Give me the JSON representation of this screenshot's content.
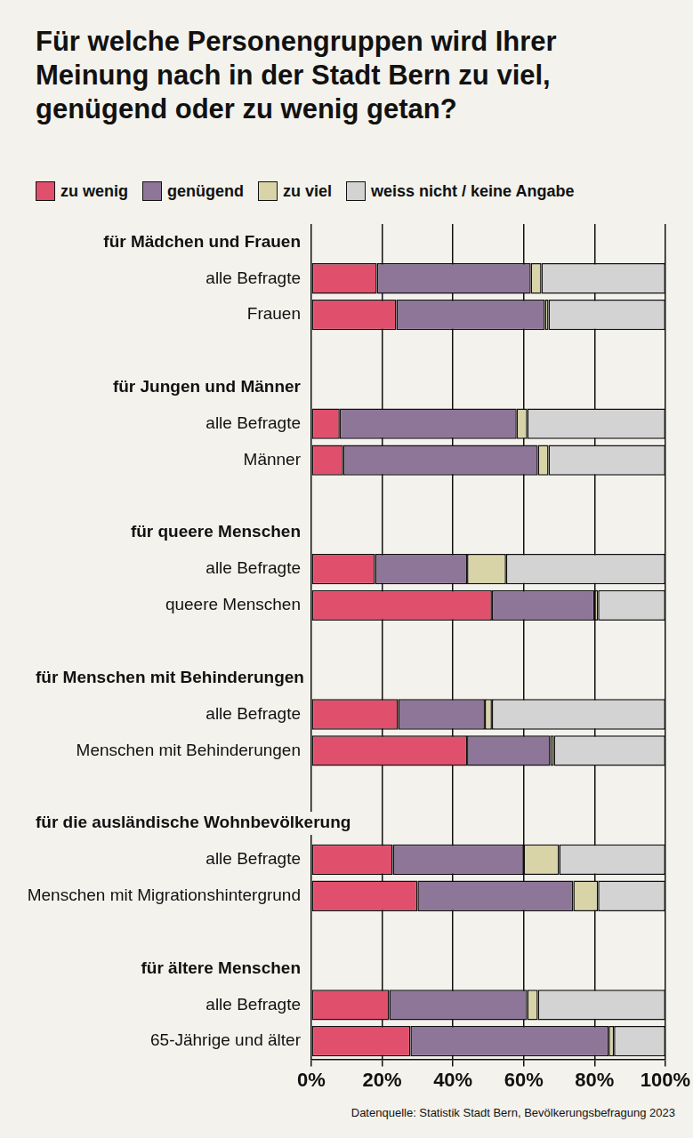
{
  "chart_data": {
    "type": "bar",
    "title": "Für welche Personengruppen wird Ihrer Meinung nach in der Stadt Bern zu viel, genügend oder zu wenig getan?",
    "source": "Datenquelle: Statistik Stadt Bern, Bevölkerungsbefragung 2023",
    "orientation": "horizontal",
    "stacked": true,
    "grid": true,
    "legend": "top-left",
    "categories": [
      "für Mädchen und Frauen",
      "alle Befragte",
      "Frauen",
      null,
      "für Jungen und Männer",
      "alle Befragte",
      "Männer",
      null,
      "für queere Menschen",
      "alle Befragte",
      "queere Menschen",
      null,
      "für Menschen mit Behinderungen",
      "alle Befragte",
      "Menschen mit Behinderungen",
      null,
      "für die ausländische Wohnbevölkerung",
      "alle Befragte",
      "Menschen mit Migrationshintergrund",
      null,
      "für ältere Menschen",
      "alle Befragte",
      "65-Jährige und älter"
    ],
    "series": [
      {
        "name": "zu wenig",
        "color": "#e0506c",
        "values": [
          null,
          18.5,
          24,
          null,
          null,
          8,
          9,
          null,
          null,
          18,
          51,
          null,
          null,
          24.5,
          44,
          null,
          null,
          23,
          30,
          null,
          null,
          22,
          28
        ]
      },
      {
        "name": "genügend",
        "color": "#8e7698",
        "values": [
          null,
          43.5,
          42,
          null,
          null,
          50,
          55,
          null,
          null,
          26,
          29,
          null,
          null,
          24.5,
          23.5,
          null,
          null,
          37,
          44,
          null,
          null,
          39,
          56
        ]
      },
      {
        "name": "zu viel",
        "color": "#d9d4a8",
        "values": [
          null,
          3,
          1,
          null,
          null,
          3,
          3,
          null,
          null,
          11,
          1,
          null,
          null,
          2,
          1,
          null,
          null,
          10,
          7,
          null,
          null,
          3,
          1.5
        ]
      },
      {
        "name": "weiss nicht / keine Angabe",
        "color": "#d3d3d3",
        "values": [
          null,
          35,
          33,
          null,
          null,
          39,
          33,
          null,
          null,
          45,
          19,
          null,
          null,
          49,
          31.5,
          null,
          null,
          30,
          19,
          null,
          null,
          36,
          14.5
        ]
      }
    ],
    "xlim": [
      0,
      100
    ],
    "xticks": [
      {
        "value": 0,
        "label": "0%"
      },
      {
        "value": 20,
        "label": "20%"
      },
      {
        "value": 40,
        "label": "40%"
      },
      {
        "value": 60,
        "label": "60%"
      },
      {
        "value": 80,
        "label": "80%"
      },
      {
        "value": 100,
        "label": "100%"
      }
    ]
  }
}
